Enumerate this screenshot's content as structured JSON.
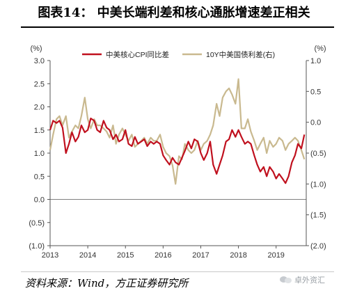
{
  "figure": {
    "title": "图表14：  中美长端利差和核心通胀增速差正相关",
    "source": "资料来源：Wind，方正证券研究所",
    "watermark": "卓外资汇"
  },
  "chart_data": {
    "type": "line",
    "left_unit": "(%)",
    "right_unit": "(%)",
    "x_ticks": [
      "2013",
      "2014",
      "2015",
      "2016",
      "2017",
      "2018",
      "2019"
    ],
    "left_ticks": [
      "3.0",
      "2.5",
      "2.0",
      "1.5",
      "1.0",
      "0.5",
      "0.0",
      "(0.5)",
      "(1.0)"
    ],
    "right_ticks": [
      "1.0",
      "0.5",
      "0.0",
      "(0.5)",
      "(1.0)",
      "(1.5)",
      "(2.0)"
    ],
    "left_ylim": [
      -1.0,
      3.0
    ],
    "right_ylim": [
      -2.0,
      1.0
    ],
    "xlim": [
      2013.0,
      2019.8
    ],
    "legend_position": "top",
    "series": [
      {
        "name": "中美核心CPI同比差",
        "axis": "left",
        "color": "#c0101e",
        "x": [
          2013.0,
          2013.08,
          2013.17,
          2013.25,
          2013.33,
          2013.42,
          2013.5,
          2013.58,
          2013.67,
          2013.75,
          2013.83,
          2013.92,
          2014.0,
          2014.08,
          2014.17,
          2014.25,
          2014.33,
          2014.42,
          2014.5,
          2014.58,
          2014.67,
          2014.75,
          2014.83,
          2014.92,
          2015.0,
          2015.08,
          2015.17,
          2015.25,
          2015.33,
          2015.42,
          2015.5,
          2015.58,
          2015.67,
          2015.75,
          2015.83,
          2015.92,
          2016.0,
          2016.08,
          2016.17,
          2016.25,
          2016.33,
          2016.42,
          2016.5,
          2016.58,
          2016.67,
          2016.75,
          2016.83,
          2016.92,
          2017.0,
          2017.08,
          2017.17,
          2017.25,
          2017.33,
          2017.42,
          2017.5,
          2017.58,
          2017.67,
          2017.75,
          2017.83,
          2017.92,
          2018.0,
          2018.08,
          2018.17,
          2018.25,
          2018.33,
          2018.42,
          2018.5,
          2018.58,
          2018.67,
          2018.75,
          2018.83,
          2018.92,
          2019.0,
          2019.08,
          2019.17,
          2019.25,
          2019.33,
          2019.42,
          2019.5,
          2019.58,
          2019.67,
          2019.75
        ],
        "values": [
          1.5,
          1.7,
          1.65,
          1.7,
          1.55,
          1.0,
          1.2,
          1.45,
          1.25,
          1.35,
          1.6,
          1.45,
          1.5,
          1.75,
          1.7,
          1.5,
          1.45,
          1.7,
          1.55,
          1.5,
          1.3,
          1.4,
          1.25,
          1.3,
          1.5,
          1.2,
          1.15,
          1.35,
          1.2,
          1.25,
          1.3,
          1.15,
          1.25,
          1.2,
          1.25,
          1.2,
          0.95,
          0.85,
          0.75,
          0.9,
          0.8,
          0.75,
          0.9,
          1.05,
          1.25,
          1.1,
          1.3,
          1.25,
          1.0,
          0.85,
          1.0,
          1.25,
          0.75,
          0.55,
          0.75,
          0.95,
          1.25,
          1.3,
          1.5,
          1.35,
          1.5,
          1.35,
          1.2,
          1.25,
          1.2,
          0.95,
          0.75,
          0.6,
          0.7,
          0.5,
          0.7,
          0.6,
          0.45,
          0.55,
          0.45,
          0.35,
          0.5,
          0.8,
          0.95,
          1.2,
          1.1,
          1.4
        ]
      },
      {
        "name": "10Y中美国债利差(右)",
        "axis": "right",
        "color": "#c9b98f",
        "x": [
          2013.0,
          2013.08,
          2013.17,
          2013.25,
          2013.33,
          2013.42,
          2013.5,
          2013.58,
          2013.67,
          2013.75,
          2013.83,
          2013.92,
          2014.0,
          2014.08,
          2014.17,
          2014.25,
          2014.33,
          2014.42,
          2014.5,
          2014.58,
          2014.67,
          2014.75,
          2014.83,
          2014.92,
          2015.0,
          2015.08,
          2015.17,
          2015.25,
          2015.33,
          2015.42,
          2015.5,
          2015.58,
          2015.67,
          2015.75,
          2015.83,
          2015.92,
          2016.0,
          2016.08,
          2016.17,
          2016.25,
          2016.33,
          2016.42,
          2016.5,
          2016.58,
          2016.67,
          2016.75,
          2016.83,
          2016.92,
          2017.0,
          2017.08,
          2017.17,
          2017.25,
          2017.33,
          2017.42,
          2017.5,
          2017.58,
          2017.67,
          2017.75,
          2017.83,
          2017.92,
          2018.0,
          2018.08,
          2018.17,
          2018.25,
          2018.33,
          2018.42,
          2018.5,
          2018.58,
          2018.67,
          2018.75,
          2018.83,
          2018.92,
          2019.0,
          2019.08,
          2019.17,
          2019.25,
          2019.33,
          2019.42,
          2019.5,
          2019.58,
          2019.67,
          2019.75
        ],
        "values": [
          -0.45,
          -0.2,
          0.05,
          0.1,
          -0.05,
          0.1,
          -0.25,
          -0.15,
          -0.05,
          -0.1,
          0.1,
          0.4,
          0.05,
          -0.1,
          0.05,
          -0.05,
          -0.05,
          -0.1,
          -0.15,
          -0.25,
          -0.05,
          -0.35,
          -0.2,
          -0.1,
          -0.2,
          -0.3,
          -0.2,
          -0.4,
          -0.35,
          -0.3,
          -0.25,
          -0.35,
          -0.25,
          -0.3,
          -0.3,
          -0.2,
          -0.4,
          -0.5,
          -0.55,
          -0.7,
          -1.0,
          -0.55,
          -0.6,
          -0.35,
          -0.45,
          -0.5,
          -0.45,
          -0.3,
          -0.45,
          -0.35,
          -0.3,
          -0.2,
          -0.05,
          0.3,
          0.1,
          0.4,
          0.5,
          0.55,
          0.45,
          0.3,
          0.7,
          -0.1,
          -0.1,
          0.05,
          -0.15,
          -0.3,
          -0.45,
          -0.35,
          -0.25,
          -0.5,
          -0.3,
          -0.4,
          -0.35,
          -0.25,
          -0.3,
          -0.45,
          -0.35,
          -0.3,
          -0.25,
          -0.3,
          -0.45,
          -0.6
        ]
      }
    ]
  }
}
